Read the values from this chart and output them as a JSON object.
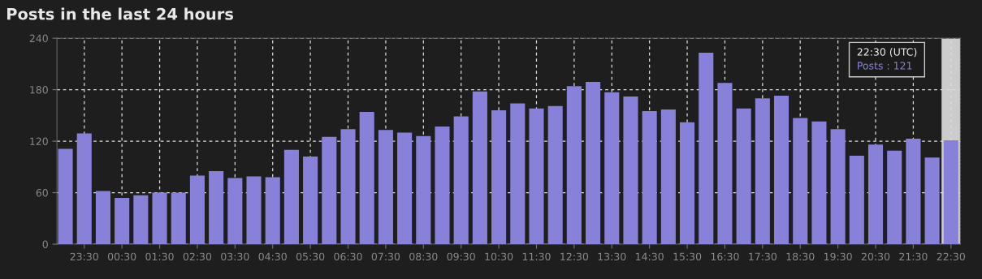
{
  "chart_data": {
    "type": "bar",
    "title": "Posts in the last 24 hours",
    "categories": [
      null,
      "23:30",
      null,
      "00:30",
      null,
      "01:30",
      null,
      "02:30",
      null,
      "03:30",
      null,
      "04:30",
      null,
      "05:30",
      null,
      "06:30",
      null,
      "07:30",
      null,
      "08:30",
      null,
      "09:30",
      null,
      "10:30",
      null,
      "11:30",
      null,
      "12:30",
      null,
      "13:30",
      null,
      "14:30",
      null,
      "15:30",
      null,
      "16:30",
      null,
      "17:30",
      null,
      "18:30",
      null,
      "19:30",
      null,
      "20:30",
      null,
      "21:30",
      null,
      "22:30"
    ],
    "series": [
      {
        "color": "#8781d9",
        "values": [
          111,
          129,
          62,
          54,
          57,
          60,
          60,
          80,
          85,
          77,
          79,
          78,
          110,
          102,
          125,
          134,
          154,
          133,
          130,
          126,
          137,
          149,
          178,
          156,
          164,
          158,
          161,
          184,
          189,
          177,
          172,
          155,
          157,
          142,
          223,
          188,
          158,
          170,
          173,
          147,
          143,
          134,
          103,
          116,
          109,
          123,
          101,
          121
        ]
      }
    ],
    "ylim": [
      0,
      240
    ],
    "yticks": [
      0,
      60,
      120,
      180,
      240
    ],
    "grid": true,
    "bands": [
      {
        "axis": "x",
        "from": "22:30",
        "to": "22:30",
        "color": "#cccccc"
      }
    ],
    "annotations": [
      "22:30 (UTC)",
      "Posts : 121"
    ]
  }
}
